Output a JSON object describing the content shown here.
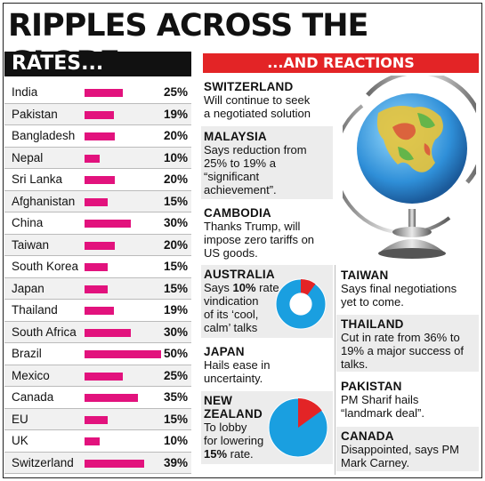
{
  "headline": "RIPPLES ACROSS THE GLOBE",
  "rates_header": "RATES...",
  "reactions_header": "...AND REACTIONS",
  "colors": {
    "bar": "#e2127d",
    "accent_red": "#e32426",
    "pie_blue": "#1a9fe0",
    "pie_red": "#e32426"
  },
  "chart_data": {
    "type": "bar",
    "categories": [
      "India",
      "Pakistan",
      "Bangladesh",
      "Nepal",
      "Sri Lanka",
      "Afghanistan",
      "China",
      "Taiwan",
      "South Korea",
      "Japan",
      "Thailand",
      "South Africa",
      "Brazil",
      "Mexico",
      "Canada",
      "EU",
      "UK",
      "Switzerland"
    ],
    "values": [
      25,
      19,
      20,
      10,
      20,
      15,
      30,
      20,
      15,
      15,
      19,
      30,
      50,
      25,
      35,
      15,
      10,
      39
    ],
    "labels": [
      "25%",
      "19%",
      "20%",
      "10%",
      "20%",
      "15%",
      "30%",
      "20%",
      "15%",
      "15%",
      "19%",
      "30%",
      "50%",
      "25%",
      "35%",
      "15%",
      "10%",
      "39%"
    ],
    "xlim": [
      0,
      50
    ]
  },
  "pies": {
    "australia": {
      "value": 10
    },
    "new_zealand": {
      "value": 15
    }
  },
  "reactions": {
    "switzerland": {
      "name": "SWITZERLAND",
      "line1": "Will continue to seek",
      "line2": "a negotiated solution"
    },
    "malaysia": {
      "name": "MALAYSIA",
      "line1": "Says reduction from",
      "line2": "25% to 19% a",
      "line3": "“significant",
      "line4": "achievement”."
    },
    "cambodia": {
      "name": "CAMBODIA",
      "line1": "Thanks Trump, will",
      "line2": "impose zero tariffs on",
      "line3": "US goods."
    },
    "australia": {
      "name": "AUSTRALIA",
      "line1a": "Says ",
      "line1b": "10%",
      "line1c": " rate",
      "line2": "vindication",
      "line3": "of its ‘cool,",
      "line4": "calm’ talks"
    },
    "japan": {
      "name": "JAPAN",
      "line1": "Hails ease in",
      "line2": "uncertainty."
    },
    "new_zealand": {
      "name1": "NEW",
      "name2": "ZEALAND",
      "line1": "To lobby",
      "line2": "for lowering",
      "line3a": "15%",
      "line3b": " rate."
    },
    "taiwan": {
      "name": "TAIWAN",
      "line1": "Says final negotiations",
      "line2": "yet to come."
    },
    "thailand": {
      "name": "THAILAND",
      "line1": "Cut in rate from 36% to",
      "line2": "19% a major success of",
      "line3": "talks."
    },
    "pakistan": {
      "name": "PAKISTAN",
      "line1": "PM Sharif hails",
      "line2": "“landmark deal”."
    },
    "canada": {
      "name": "CANADA",
      "line1": "Disappointed, says PM",
      "line2": "Mark Carney."
    }
  }
}
